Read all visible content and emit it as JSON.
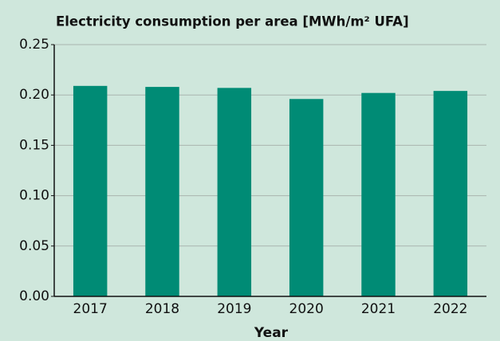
{
  "chart_data": {
    "type": "bar",
    "title": "Electricity consumption per area [MWh/m² UFA]",
    "x_label": "Year",
    "categories": [
      "2017",
      "2018",
      "2019",
      "2020",
      "2021",
      "2022"
    ],
    "values": [
      0.209,
      0.208,
      0.207,
      0.196,
      0.202,
      0.204
    ],
    "color": "#008b75",
    "ylim": [
      0,
      0.25
    ],
    "yticks": [
      {
        "value": 0,
        "label": "0.00"
      },
      0.05,
      {
        "value": 0.1,
        "label": "0.10"
      },
      0.15,
      {
        "value": 0.2,
        "label": "0.20"
      },
      0.25
    ],
    "grid": true
  }
}
